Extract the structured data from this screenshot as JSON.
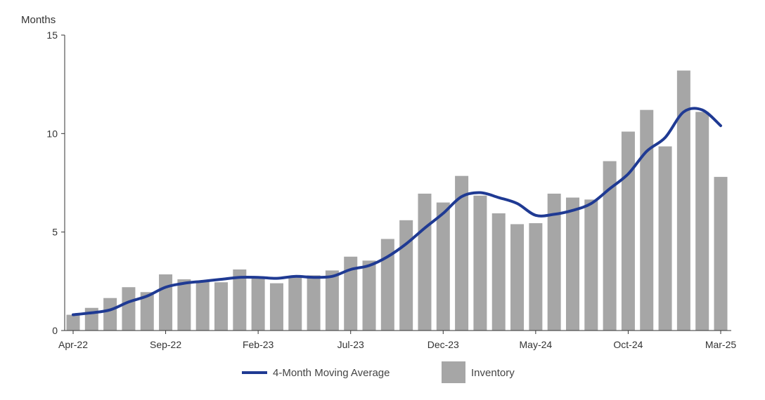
{
  "chart_data": {
    "type": "bar",
    "ylabel": "Months",
    "ylim": [
      0,
      15
    ],
    "yticks": [
      0,
      5,
      10,
      15
    ],
    "grid": false,
    "legend_position": "bottom",
    "categories": [
      "Apr-22",
      "May-22",
      "Jun-22",
      "Jul-22",
      "Aug-22",
      "Sep-22",
      "Oct-22",
      "Nov-22",
      "Dec-22",
      "Jan-23",
      "Feb-23",
      "Mar-23",
      "Apr-23",
      "May-23",
      "Jun-23",
      "Jul-23",
      "Aug-23",
      "Sep-23",
      "Oct-23",
      "Nov-23",
      "Dec-23",
      "Jan-24",
      "Feb-24",
      "Mar-24",
      "Apr-24",
      "May-24",
      "Jun-24",
      "Jul-24",
      "Aug-24",
      "Sep-24",
      "Oct-24",
      "Nov-24",
      "Dec-24",
      "Jan-25",
      "Feb-25",
      "Mar-25"
    ],
    "x_tick_labels": [
      "Apr-22",
      "Sep-22",
      "Feb-23",
      "Jul-23",
      "Dec-23",
      "May-24",
      "Oct-24",
      "Mar-25"
    ],
    "series": [
      {
        "name": "Inventory",
        "type": "bar",
        "color": "#a6a6a6",
        "values": [
          0.8,
          1.15,
          1.65,
          2.2,
          1.95,
          2.85,
          2.6,
          2.5,
          2.45,
          3.1,
          2.7,
          2.4,
          2.7,
          2.8,
          3.05,
          3.75,
          3.55,
          4.65,
          5.6,
          6.95,
          6.5,
          7.85,
          6.85,
          5.95,
          5.4,
          5.45,
          6.95,
          6.75,
          6.65,
          8.6,
          10.1,
          11.2,
          9.35,
          13.2,
          11.1,
          7.8
        ]
      },
      {
        "name": "4-Month Moving Average",
        "type": "line",
        "color": "#1f3a93",
        "values": [
          0.8,
          0.9,
          1.05,
          1.45,
          1.75,
          2.2,
          2.4,
          2.5,
          2.6,
          2.7,
          2.7,
          2.65,
          2.75,
          2.7,
          2.75,
          3.1,
          3.3,
          3.75,
          4.4,
          5.2,
          5.95,
          6.8,
          7.0,
          6.75,
          6.45,
          5.85,
          5.9,
          6.1,
          6.45,
          7.2,
          7.95,
          9.1,
          9.8,
          11.1,
          11.2,
          10.4
        ]
      }
    ]
  }
}
